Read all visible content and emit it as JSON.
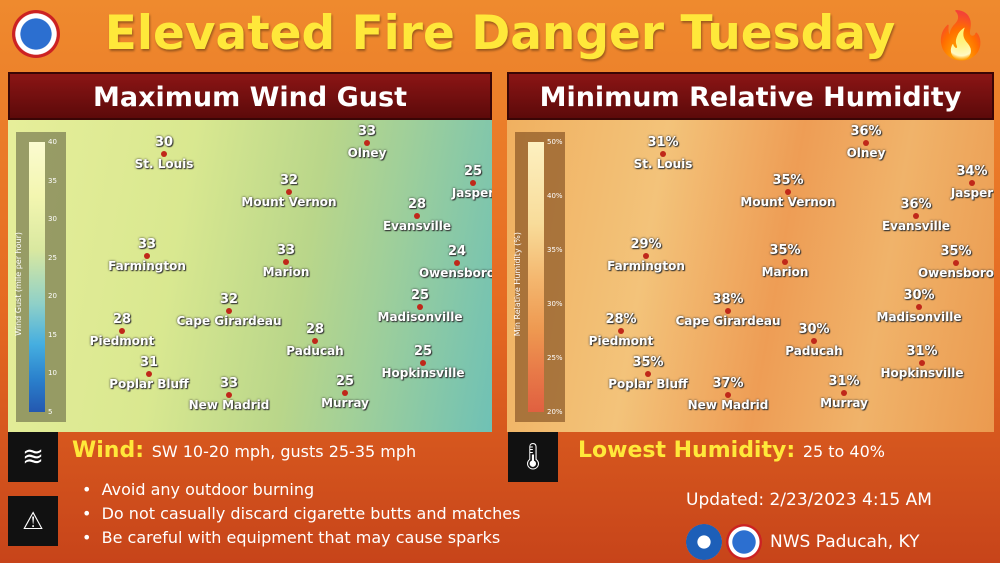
{
  "header": {
    "title": "Elevated Fire Danger Tuesday",
    "logo_text": "NATIONAL WEATHER SERVICE",
    "icon": "fire-icon"
  },
  "colors": {
    "title": "#ffe83a",
    "panel_header": "#7a1010",
    "dot": "#c0281a"
  },
  "wind_panel": {
    "title": "Maximum Wind Gust",
    "legend_title": "Wind Gust (mile per hour)",
    "legend_ticks": [
      "40",
      "35",
      "30",
      "25",
      "20",
      "15",
      "10",
      "5"
    ],
    "cities": [
      {
        "name": "St. Louis",
        "value": "30"
      },
      {
        "name": "Olney",
        "value": "33"
      },
      {
        "name": "Mount Vernon",
        "value": "32"
      },
      {
        "name": "Evansville",
        "value": "28"
      },
      {
        "name": "Jasper",
        "value": "25"
      },
      {
        "name": "Owensboro",
        "value": "24"
      },
      {
        "name": "Farmington",
        "value": "33"
      },
      {
        "name": "Marion",
        "value": "33"
      },
      {
        "name": "Cape Girardeau",
        "value": "32"
      },
      {
        "name": "Madisonville",
        "value": "25"
      },
      {
        "name": "Piedmont",
        "value": "28"
      },
      {
        "name": "Paducah",
        "value": "28"
      },
      {
        "name": "Poplar Bluff",
        "value": "31"
      },
      {
        "name": "Hopkinsville",
        "value": "25"
      },
      {
        "name": "New Madrid",
        "value": "33"
      },
      {
        "name": "Murray",
        "value": "25"
      }
    ]
  },
  "rh_panel": {
    "title": "Minimum Relative Humidity",
    "legend_title": "Min Relative Humidity (%)",
    "legend_ticks": [
      "50%",
      "40%",
      "35%",
      "30%",
      "25%",
      "20%"
    ],
    "cities": [
      {
        "name": "St. Louis",
        "value": "31%"
      },
      {
        "name": "Olney",
        "value": "36%"
      },
      {
        "name": "Mount Vernon",
        "value": "35%"
      },
      {
        "name": "Evansville",
        "value": "36%"
      },
      {
        "name": "Jasper",
        "value": "34%"
      },
      {
        "name": "Owensboro",
        "value": "35%"
      },
      {
        "name": "Farmington",
        "value": "29%"
      },
      {
        "name": "Marion",
        "value": "35%"
      },
      {
        "name": "Cape Girardeau",
        "value": "38%"
      },
      {
        "name": "Madisonville",
        "value": "30%"
      },
      {
        "name": "Piedmont",
        "value": "28%"
      },
      {
        "name": "Paducah",
        "value": "30%"
      },
      {
        "name": "Poplar Bluff",
        "value": "35%"
      },
      {
        "name": "Hopkinsville",
        "value": "31%"
      },
      {
        "name": "New Madrid",
        "value": "37%"
      },
      {
        "name": "Murray",
        "value": "31%"
      }
    ]
  },
  "wind": {
    "label": "Wind:",
    "detail": "SW 10-20 mph, gusts 25-35 mph",
    "icon": "wind-icon"
  },
  "humidity": {
    "label": "Lowest Humidity:",
    "detail": "25 to 40%",
    "icon": "thermometer-icon"
  },
  "bullets": [
    "Avoid any outdoor burning",
    "Do not casually discard cigarette butts and matches",
    "Be careful with equipment that may cause sparks"
  ],
  "warning_icon": "fire-warning-icon",
  "updated": "Updated: 2/23/2023 4:15 AM",
  "office": "NWS Paducah, KY"
}
